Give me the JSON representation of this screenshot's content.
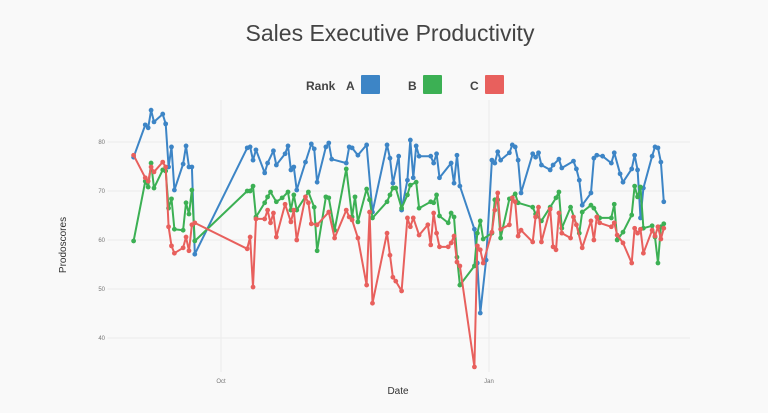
{
  "chart_data": {
    "type": "line",
    "title": "Sales Executive Productivity",
    "xlabel": "Date",
    "ylabel": "Prodoscores",
    "legend_title": "Rank",
    "legend_placement": "top-center",
    "grid": true,
    "ylim": [
      33,
      89
    ],
    "xlim": [
      "08-23",
      "03-11"
    ],
    "x_ticks": [
      {
        "date": "10-01",
        "label": "Oct"
      },
      {
        "date": "01-01",
        "label": "Jan"
      }
    ],
    "y_ticks": [
      40,
      50,
      60,
      70,
      80
    ],
    "series": [
      {
        "name": "A",
        "color": "#3d85c6",
        "points": [
          [
            "09-01",
            76.9
          ],
          [
            "09-05",
            83.5
          ],
          [
            "09-06",
            82.9
          ],
          [
            "09-07",
            86.5
          ],
          [
            "09-08",
            84.1
          ],
          [
            "09-11",
            85.7
          ],
          [
            "09-12",
            83.7
          ],
          [
            "09-13",
            74.9
          ],
          [
            "09-14",
            79
          ],
          [
            "09-15",
            70.2
          ],
          [
            "09-18",
            75.5
          ],
          [
            "09-19",
            79.2
          ],
          [
            "09-20",
            74.9
          ],
          [
            "09-21",
            74.9
          ],
          [
            "09-22",
            57.1
          ],
          [
            "10-10",
            78.8
          ],
          [
            "10-11",
            79
          ],
          [
            "10-12",
            76.3
          ],
          [
            "10-13",
            78.4
          ],
          [
            "10-16",
            73.7
          ],
          [
            "10-17",
            75.7
          ],
          [
            "10-19",
            78.2
          ],
          [
            "10-20",
            75.3
          ],
          [
            "10-23",
            77.6
          ],
          [
            "10-24",
            79.2
          ],
          [
            "10-25",
            74.3
          ],
          [
            "10-26",
            74.9
          ],
          [
            "10-27",
            70.2
          ],
          [
            "10-30",
            75.9
          ],
          [
            "11-01",
            79.6
          ],
          [
            "11-02",
            78.6
          ],
          [
            "11-03",
            71.8
          ],
          [
            "11-06",
            79
          ],
          [
            "11-07",
            79.8
          ],
          [
            "11-08",
            76.5
          ],
          [
            "11-13",
            75.7
          ],
          [
            "11-14",
            79
          ],
          [
            "11-15",
            78.8
          ],
          [
            "11-17",
            77.3
          ],
          [
            "11-20",
            79.4
          ],
          [
            "11-22",
            65.7
          ],
          [
            "11-27",
            79.4
          ],
          [
            "11-28",
            76.7
          ],
          [
            "11-29",
            71.6
          ],
          [
            "12-01",
            77.1
          ],
          [
            "12-02",
            66.1
          ],
          [
            "12-04",
            72.2
          ],
          [
            "12-05",
            80.4
          ],
          [
            "12-06",
            72.7
          ],
          [
            "12-07",
            79.2
          ],
          [
            "12-08",
            77.1
          ],
          [
            "12-12",
            77.1
          ],
          [
            "12-13",
            75.7
          ],
          [
            "12-14",
            77.6
          ],
          [
            "12-15",
            72.7
          ],
          [
            "12-19",
            75.7
          ],
          [
            "12-20",
            71.6
          ],
          [
            "12-21",
            77.3
          ],
          [
            "12-22",
            71
          ],
          [
            "12-27",
            62.2
          ],
          [
            "12-28",
            55.3
          ],
          [
            "12-29",
            45.1
          ],
          [
            "12-31",
            55.9
          ],
          [
            "01-02",
            76.3
          ],
          [
            "01-03",
            75.7
          ],
          [
            "01-04",
            78
          ],
          [
            "01-05",
            76.3
          ],
          [
            "01-08",
            77.8
          ],
          [
            "01-09",
            79.4
          ],
          [
            "01-10",
            79
          ],
          [
            "01-11",
            76.3
          ],
          [
            "01-12",
            69.6
          ],
          [
            "01-16",
            77.6
          ],
          [
            "01-17",
            76.9
          ],
          [
            "01-18",
            77.8
          ],
          [
            "01-19",
            75.3
          ],
          [
            "01-22",
            74.3
          ],
          [
            "01-23",
            75.3
          ],
          [
            "01-25",
            76.5
          ],
          [
            "01-26",
            74.7
          ],
          [
            "01-30",
            76.1
          ],
          [
            "01-31",
            74.5
          ],
          [
            "02-01",
            72.2
          ],
          [
            "02-02",
            67.1
          ],
          [
            "02-05",
            69.6
          ],
          [
            "02-06",
            76.7
          ],
          [
            "02-07",
            77.3
          ],
          [
            "02-09",
            77.1
          ],
          [
            "02-12",
            75.7
          ],
          [
            "02-13",
            77.8
          ],
          [
            "02-15",
            73.5
          ],
          [
            "02-16",
            71.8
          ],
          [
            "02-19",
            74.5
          ],
          [
            "02-20",
            77.3
          ],
          [
            "02-21",
            74.3
          ],
          [
            "02-22",
            64.5
          ],
          [
            "02-23",
            70.6
          ],
          [
            "02-26",
            77.1
          ],
          [
            "02-27",
            79
          ],
          [
            "02-28",
            78.8
          ],
          [
            "03-01",
            75.9
          ],
          [
            "03-02",
            67.8
          ]
        ]
      },
      {
        "name": "B",
        "color": "#3cb054",
        "points": [
          [
            "09-01",
            59.8
          ],
          [
            "09-05",
            72
          ],
          [
            "09-06",
            70.8
          ],
          [
            "09-07",
            75.7
          ],
          [
            "09-08",
            70.6
          ],
          [
            "09-11",
            74.3
          ],
          [
            "09-12",
            74.1
          ],
          [
            "09-13",
            66.5
          ],
          [
            "09-14",
            68.4
          ],
          [
            "09-15",
            62.2
          ],
          [
            "09-18",
            62
          ],
          [
            "09-19",
            67.6
          ],
          [
            "09-20",
            65.3
          ],
          [
            "09-21",
            70.2
          ],
          [
            "09-22",
            59.8
          ],
          [
            "10-10",
            70
          ],
          [
            "10-11",
            70
          ],
          [
            "10-12",
            71
          ],
          [
            "10-13",
            64.7
          ],
          [
            "10-16",
            67.6
          ],
          [
            "10-17",
            68.8
          ],
          [
            "10-18",
            69.8
          ],
          [
            "10-20",
            67.8
          ],
          [
            "10-22",
            68.6
          ],
          [
            "10-24",
            69.8
          ],
          [
            "10-25",
            66.1
          ],
          [
            "10-26",
            69.2
          ],
          [
            "10-27",
            66.1
          ],
          [
            "10-31",
            69.8
          ],
          [
            "11-02",
            66.7
          ],
          [
            "11-03",
            57.8
          ],
          [
            "11-06",
            68.8
          ],
          [
            "11-07",
            68.6
          ],
          [
            "11-09",
            62
          ],
          [
            "11-13",
            74.5
          ],
          [
            "11-15",
            64.7
          ],
          [
            "11-16",
            68.8
          ],
          [
            "11-17",
            63.7
          ],
          [
            "11-20",
            70.4
          ],
          [
            "11-21",
            68.2
          ],
          [
            "11-22",
            64.5
          ],
          [
            "11-27",
            67.8
          ],
          [
            "11-28",
            69.2
          ],
          [
            "11-29",
            70.6
          ],
          [
            "11-30",
            70.6
          ],
          [
            "12-02",
            66.5
          ],
          [
            "12-04",
            69.2
          ],
          [
            "12-05",
            71.2
          ],
          [
            "12-07",
            71.8
          ],
          [
            "12-08",
            66.5
          ],
          [
            "12-12",
            67.8
          ],
          [
            "12-13",
            67.6
          ],
          [
            "12-14",
            69.2
          ],
          [
            "12-15",
            64.9
          ],
          [
            "12-18",
            63.5
          ],
          [
            "12-19",
            65.5
          ],
          [
            "12-20",
            64.7
          ],
          [
            "12-21",
            56.5
          ],
          [
            "12-22",
            50.8
          ],
          [
            "12-27",
            54.7
          ],
          [
            "12-28",
            61.4
          ],
          [
            "12-29",
            63.9
          ],
          [
            "12-30",
            60.2
          ],
          [
            "01-02",
            61.4
          ],
          [
            "01-03",
            68.2
          ],
          [
            "01-04",
            68.2
          ],
          [
            "01-05",
            60.4
          ],
          [
            "01-08",
            68.4
          ],
          [
            "01-10",
            69.4
          ],
          [
            "01-11",
            67.6
          ],
          [
            "01-16",
            66.7
          ],
          [
            "01-17",
            65.3
          ],
          [
            "01-19",
            63.9
          ],
          [
            "01-22",
            66.7
          ],
          [
            "01-24",
            68.6
          ],
          [
            "01-25",
            69.8
          ],
          [
            "01-26",
            62.4
          ],
          [
            "01-29",
            66.7
          ],
          [
            "02-01",
            61.4
          ],
          [
            "02-02",
            65.7
          ],
          [
            "02-05",
            67.1
          ],
          [
            "02-06",
            66.5
          ],
          [
            "02-08",
            64.5
          ],
          [
            "02-12",
            64.5
          ],
          [
            "02-13",
            67.3
          ],
          [
            "02-14",
            60
          ],
          [
            "02-16",
            61.6
          ],
          [
            "02-19",
            65.1
          ],
          [
            "02-20",
            71
          ],
          [
            "02-21",
            68.8
          ],
          [
            "02-22",
            70.8
          ],
          [
            "02-23",
            62.4
          ],
          [
            "02-26",
            62.9
          ],
          [
            "02-27",
            60.6
          ],
          [
            "02-28",
            55.3
          ],
          [
            "03-01",
            62.7
          ],
          [
            "03-02",
            63.3
          ]
        ]
      },
      {
        "name": "C",
        "color": "#e8605d",
        "points": [
          [
            "09-01",
            77.3
          ],
          [
            "09-05",
            72.7
          ],
          [
            "09-06",
            72
          ],
          [
            "09-07",
            74.9
          ],
          [
            "09-08",
            73.9
          ],
          [
            "09-11",
            75.9
          ],
          [
            "09-12",
            74.9
          ],
          [
            "09-13",
            62.7
          ],
          [
            "09-14",
            58.8
          ],
          [
            "09-15",
            57.3
          ],
          [
            "09-18",
            58.4
          ],
          [
            "09-19",
            60.6
          ],
          [
            "09-20",
            57.8
          ],
          [
            "09-21",
            63.1
          ],
          [
            "09-22",
            63.5
          ],
          [
            "10-10",
            58.2
          ],
          [
            "10-11",
            60.6
          ],
          [
            "10-12",
            50.4
          ],
          [
            "10-13",
            64.3
          ],
          [
            "10-16",
            64.3
          ],
          [
            "10-17",
            66.1
          ],
          [
            "10-18",
            63.5
          ],
          [
            "10-19",
            65.5
          ],
          [
            "10-20",
            60.6
          ],
          [
            "10-23",
            67.3
          ],
          [
            "10-25",
            63.7
          ],
          [
            "10-26",
            66.1
          ],
          [
            "10-27",
            60
          ],
          [
            "10-30",
            68.8
          ],
          [
            "10-31",
            67.6
          ],
          [
            "11-01",
            63.3
          ],
          [
            "11-03",
            63.1
          ],
          [
            "11-07",
            65.7
          ],
          [
            "11-09",
            60.4
          ],
          [
            "11-13",
            66.1
          ],
          [
            "11-14",
            64.7
          ],
          [
            "11-15",
            64.1
          ],
          [
            "11-17",
            60.4
          ],
          [
            "11-20",
            50.8
          ],
          [
            "11-21",
            65.7
          ],
          [
            "11-22",
            47.1
          ],
          [
            "11-27",
            61.4
          ],
          [
            "11-28",
            56.9
          ],
          [
            "11-29",
            52.4
          ],
          [
            "11-30",
            51.6
          ],
          [
            "12-02",
            49.6
          ],
          [
            "12-04",
            64.5
          ],
          [
            "12-05",
            62.7
          ],
          [
            "12-06",
            64.5
          ],
          [
            "12-08",
            61
          ],
          [
            "12-11",
            63.1
          ],
          [
            "12-12",
            59
          ],
          [
            "12-13",
            65.5
          ],
          [
            "12-14",
            61.4
          ],
          [
            "12-15",
            58.6
          ],
          [
            "12-18",
            58.6
          ],
          [
            "12-19",
            59.4
          ],
          [
            "12-20",
            60.8
          ],
          [
            "12-21",
            55.5
          ],
          [
            "12-22",
            54.7
          ],
          [
            "12-27",
            34.1
          ],
          [
            "12-28",
            58.8
          ],
          [
            "12-29",
            58
          ],
          [
            "12-30",
            55.3
          ],
          [
            "01-02",
            61.6
          ],
          [
            "01-03",
            66.1
          ],
          [
            "01-04",
            69.6
          ],
          [
            "01-05",
            62.2
          ],
          [
            "01-08",
            63.1
          ],
          [
            "01-09",
            68.6
          ],
          [
            "01-10",
            67.8
          ],
          [
            "01-11",
            60.8
          ],
          [
            "01-12",
            62
          ],
          [
            "01-16",
            59.6
          ],
          [
            "01-17",
            64.7
          ],
          [
            "01-18",
            66.7
          ],
          [
            "01-19",
            59.6
          ],
          [
            "01-22",
            66.3
          ],
          [
            "01-23",
            58.6
          ],
          [
            "01-24",
            58
          ],
          [
            "01-25",
            65.5
          ],
          [
            "01-26",
            61.4
          ],
          [
            "01-29",
            60.4
          ],
          [
            "01-30",
            64.7
          ],
          [
            "01-31",
            63.1
          ],
          [
            "02-02",
            58.4
          ],
          [
            "02-05",
            63.9
          ],
          [
            "02-06",
            60
          ],
          [
            "02-07",
            64.7
          ],
          [
            "02-08",
            63.5
          ],
          [
            "02-12",
            62.7
          ],
          [
            "02-13",
            63.5
          ],
          [
            "02-14",
            61
          ],
          [
            "02-16",
            59.4
          ],
          [
            "02-19",
            55.3
          ],
          [
            "02-20",
            62.4
          ],
          [
            "02-21",
            61.4
          ],
          [
            "02-22",
            62.2
          ],
          [
            "02-23",
            57.3
          ],
          [
            "02-26",
            62
          ],
          [
            "02-27",
            60.8
          ],
          [
            "02-28",
            62.7
          ],
          [
            "03-01",
            60.2
          ],
          [
            "03-02",
            62.4
          ]
        ]
      }
    ]
  }
}
